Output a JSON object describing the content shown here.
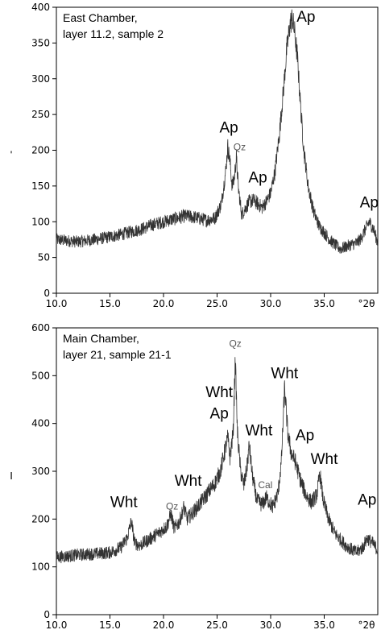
{
  "chart_data": [
    {
      "type": "line",
      "title_lines": [
        "East Chamber,",
        "layer 11.2, sample 2"
      ],
      "xlabel": "°2θ",
      "ylabel": "'",
      "xlim": [
        10,
        40
      ],
      "ylim": [
        0,
        400
      ],
      "x_ticks": [
        "10.0",
        "15.0",
        "20.0",
        "25.0",
        "30.0",
        "35.0"
      ],
      "y_ticks": [
        "0",
        "50",
        "100",
        "150",
        "200",
        "250",
        "300",
        "350",
        "400"
      ],
      "series": [
        {
          "color": "#333333",
          "x": [
            10,
            12,
            14,
            16,
            18,
            19,
            20,
            21,
            22,
            23,
            24,
            24.8,
            25.4,
            25.8,
            26.0,
            26.2,
            26.4,
            26.6,
            26.8,
            27.0,
            27.3,
            27.6,
            28.0,
            28.4,
            28.8,
            29.2,
            29.6,
            30.0,
            30.4,
            30.8,
            31.2,
            31.5,
            31.8,
            32.0,
            32.2,
            32.5,
            32.8,
            33.1,
            33.5,
            34.0,
            34.5,
            35.0,
            35.5,
            36.0,
            36.5,
            37.0,
            37.5,
            38.0,
            38.4,
            38.8,
            39.2,
            39.6,
            40.0
          ],
          "y": [
            75,
            72,
            76,
            82,
            90,
            96,
            100,
            104,
            108,
            106,
            102,
            105,
            125,
            170,
            205,
            185,
            150,
            160,
            190,
            145,
            110,
            118,
            128,
            130,
            125,
            120,
            128,
            140,
            170,
            220,
            285,
            340,
            375,
            385,
            370,
            330,
            260,
            200,
            150,
            115,
            95,
            85,
            75,
            68,
            62,
            65,
            68,
            70,
            76,
            88,
            100,
            90,
            70
          ]
        }
      ],
      "annotations": [
        {
          "text": "Ap",
          "x": 26.1,
          "y": 225,
          "size": "big"
        },
        {
          "text": "Qz",
          "x": 27.1,
          "y": 200,
          "size": "small"
        },
        {
          "text": "Ap",
          "x": 28.8,
          "y": 155,
          "size": "big"
        },
        {
          "text": "Ap",
          "x": 33.3,
          "y": 380,
          "size": "big"
        },
        {
          "text": "Ap",
          "x": 39.2,
          "y": 120,
          "size": "big"
        }
      ]
    },
    {
      "type": "line",
      "title_lines": [
        "Main Chamber,",
        "layer 21, sample 21-1"
      ],
      "xlabel": "°2θ",
      "ylabel": "I",
      "xlim": [
        10,
        40
      ],
      "ylim": [
        0,
        600
      ],
      "x_ticks": [
        "10.0",
        "15.0",
        "20.0",
        "25.0",
        "30.0",
        "35.0"
      ],
      "y_ticks": [
        "0",
        "100",
        "200",
        "300",
        "400",
        "500",
        "600"
      ],
      "series": [
        {
          "color": "#333333",
          "x": [
            10,
            12,
            14,
            15,
            16,
            16.6,
            17.0,
            17.3,
            17.8,
            18.5,
            19.5,
            20.3,
            20.7,
            21.0,
            21.5,
            21.9,
            22.2,
            23.0,
            24.0,
            24.8,
            25.3,
            25.7,
            26.0,
            26.2,
            26.5,
            26.7,
            26.9,
            27.2,
            27.5,
            27.8,
            28.0,
            28.3,
            28.7,
            29.2,
            29.6,
            30.2,
            30.7,
            31.0,
            31.3,
            31.6,
            31.9,
            32.3,
            32.8,
            33.3,
            33.8,
            34.3,
            34.6,
            34.9,
            35.4,
            36.0,
            37.0,
            38.0,
            38.6,
            39.0,
            39.5,
            40.0
          ],
          "y": [
            120,
            125,
            128,
            130,
            140,
            160,
            195,
            150,
            145,
            155,
            170,
            185,
            210,
            180,
            195,
            225,
            200,
            220,
            250,
            275,
            300,
            340,
            370,
            330,
            380,
            535,
            380,
            300,
            270,
            310,
            355,
            290,
            240,
            230,
            245,
            225,
            255,
            320,
            475,
            380,
            340,
            320,
            280,
            250,
            235,
            250,
            295,
            240,
            200,
            170,
            145,
            130,
            140,
            160,
            150,
            135
          ]
        }
      ],
      "annotations": [
        {
          "text": "Wht",
          "x": 16.3,
          "y": 225,
          "size": "big"
        },
        {
          "text": "Qz",
          "x": 20.8,
          "y": 220,
          "size": "small"
        },
        {
          "text": "Wht",
          "x": 22.3,
          "y": 270,
          "size": "big"
        },
        {
          "text": "Wht",
          "x": 25.2,
          "y": 455,
          "size": "big"
        },
        {
          "text": "Ap",
          "x": 25.2,
          "y": 410,
          "size": "big"
        },
        {
          "text": "Qz",
          "x": 26.7,
          "y": 560,
          "size": "small"
        },
        {
          "text": "Wht",
          "x": 28.9,
          "y": 375,
          "size": "big"
        },
        {
          "text": "Cal",
          "x": 29.5,
          "y": 265,
          "size": "small"
        },
        {
          "text": "Wht",
          "x": 31.3,
          "y": 495,
          "size": "big"
        },
        {
          "text": "Ap",
          "x": 33.2,
          "y": 365,
          "size": "big"
        },
        {
          "text": "Wht",
          "x": 35.0,
          "y": 315,
          "size": "big"
        },
        {
          "text": "Ap",
          "x": 39.0,
          "y": 230,
          "size": "big"
        }
      ]
    }
  ]
}
